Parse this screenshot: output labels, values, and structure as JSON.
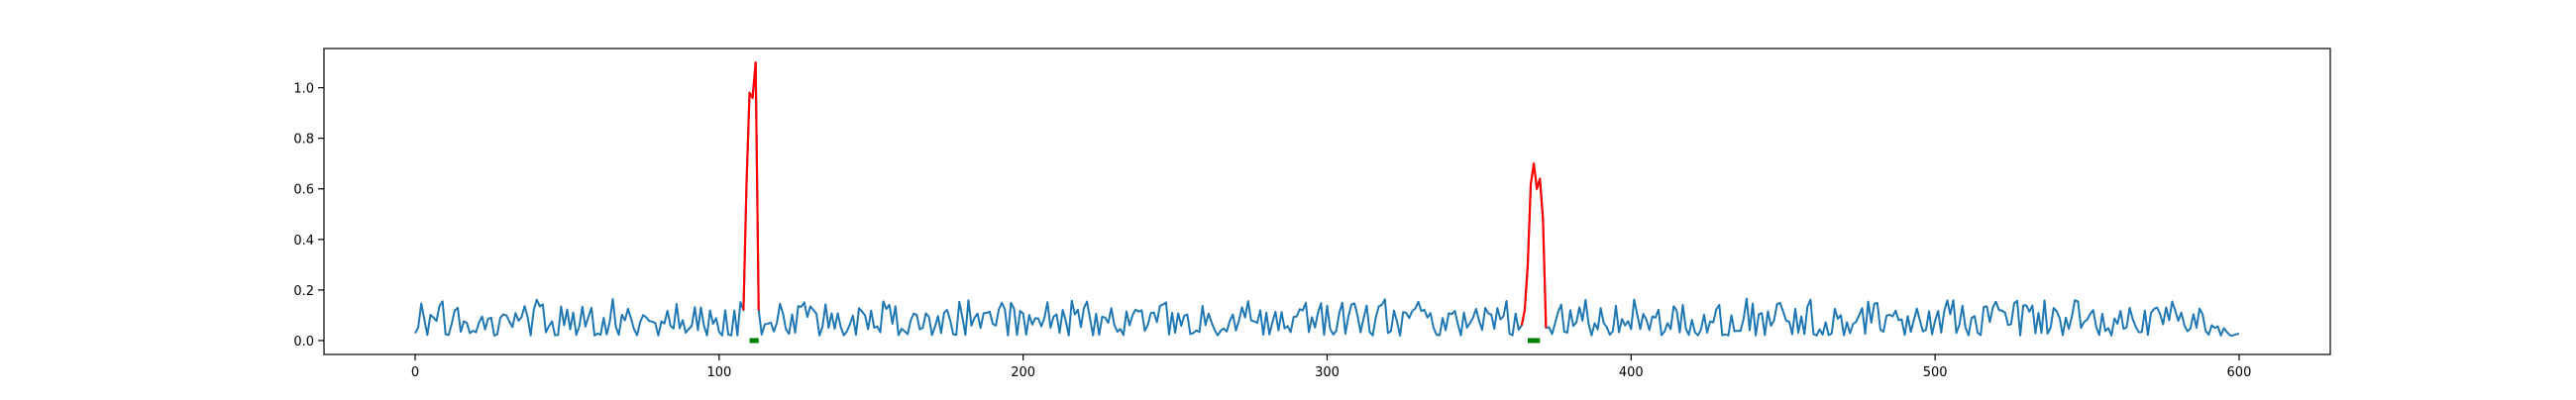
{
  "chart_data": {
    "type": "line",
    "title": "",
    "xlabel": "",
    "ylabel": "",
    "xlim": [
      -30,
      630
    ],
    "ylim": [
      -0.055,
      1.155
    ],
    "x_ticks": [
      0,
      100,
      200,
      300,
      400,
      500,
      600
    ],
    "x_tick_labels": [
      "0",
      "100",
      "200",
      "300",
      "400",
      "500",
      "600"
    ],
    "y_ticks": [
      0.0,
      0.2,
      0.4,
      0.6,
      0.8,
      1.0
    ],
    "y_tick_labels": [
      "0.0",
      "0.2",
      "0.4",
      "0.6",
      "0.8",
      "1.0"
    ],
    "grid": false,
    "legend": "none",
    "colors": {
      "signal": "#1f77b4",
      "peak": "#ff0000",
      "marker": "#008000"
    },
    "signal": {
      "x_start": 0,
      "x_end": 600,
      "baseline_low": 0.02,
      "baseline_high": 0.17
    },
    "series": [
      {
        "role": "peak",
        "x": [
          108,
          109,
          110,
          111,
          112,
          113
        ],
        "y": [
          0.12,
          0.62,
          0.98,
          0.96,
          1.1,
          0.12
        ]
      },
      {
        "role": "peak",
        "x": [
          364,
          365,
          366,
          367,
          368,
          369,
          370,
          371,
          372
        ],
        "y": [
          0.06,
          0.12,
          0.3,
          0.62,
          0.7,
          0.6,
          0.64,
          0.48,
          0.05
        ]
      }
    ],
    "markers": [
      {
        "x_start": 110,
        "x_end": 113,
        "y": 0.0
      },
      {
        "x_start": 366,
        "x_end": 370,
        "y": 0.0
      }
    ]
  }
}
